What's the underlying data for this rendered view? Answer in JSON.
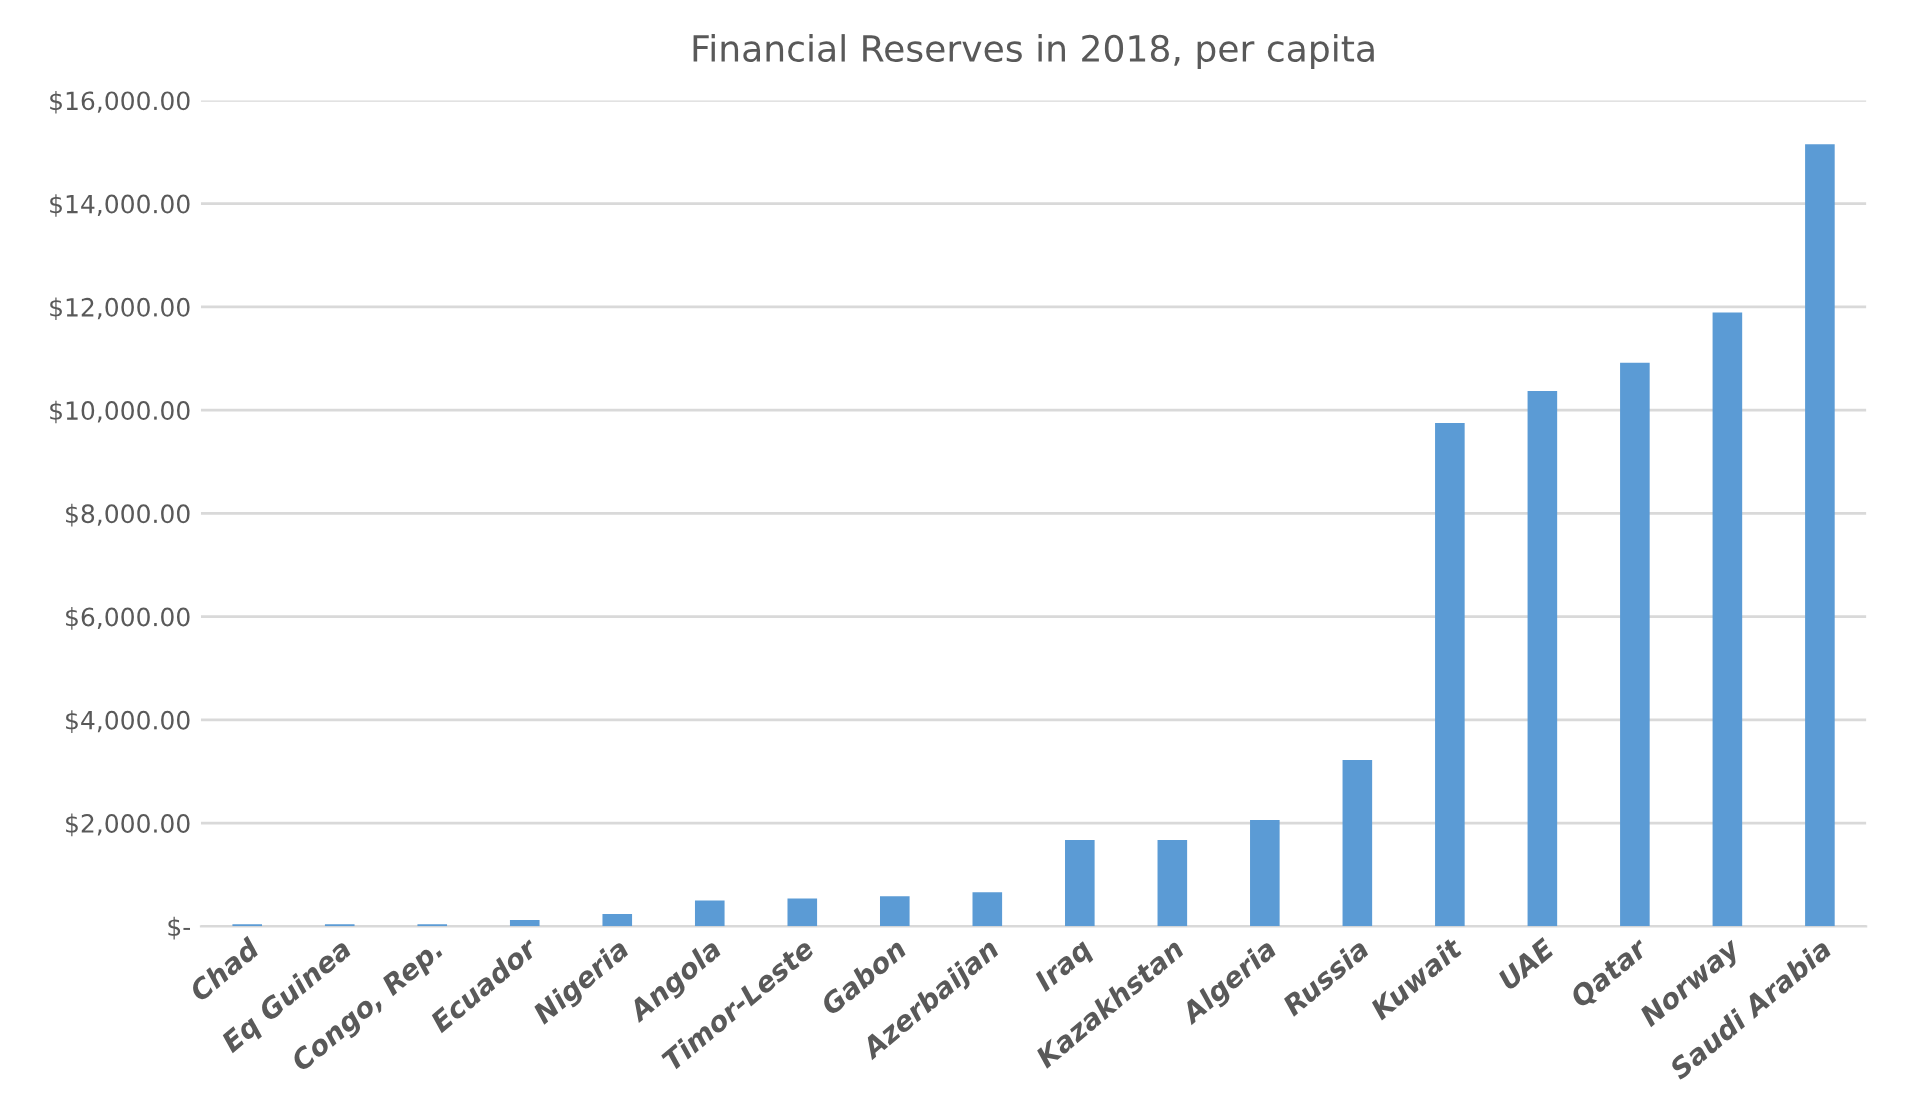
{
  "chart_data": {
    "type": "bar",
    "title": "Financial Reserves in 2018, per capita",
    "categories": [
      "Chad",
      "Eq Guinea",
      "Congo, Rep.",
      "Ecuador",
      "Nigeria",
      "Angola",
      "Timor-Leste",
      "Gabon",
      "Azerbaijan",
      "Iraq",
      "Kazakhstan",
      "Algeria",
      "Russia",
      "Kuwait",
      "UAE",
      "Qatar",
      "Norway",
      "Saudi Arabia"
    ],
    "values": [
      40,
      40,
      40,
      120,
      240,
      500,
      540,
      580,
      660,
      1670,
      1670,
      2060,
      3220,
      9750,
      10370,
      10920,
      11890,
      15150
    ],
    "color": "#5b9bd5",
    "ylim": [
      0,
      16000
    ],
    "yticks": [
      {
        "value": 0,
        "label": "$-"
      },
      {
        "value": 2000,
        "label": "$2,000.00"
      },
      {
        "value": 4000,
        "label": "$4,000.00"
      },
      {
        "value": 6000,
        "label": "$6,000.00"
      },
      {
        "value": 8000,
        "label": "$8,000.00"
      },
      {
        "value": 10000,
        "label": "$10,000.00"
      },
      {
        "value": 12000,
        "label": "$12,000.00"
      },
      {
        "value": 14000,
        "label": "$14,000.00"
      },
      {
        "value": 16000,
        "label": "$16,000.00"
      }
    ],
    "grid": "y"
  }
}
